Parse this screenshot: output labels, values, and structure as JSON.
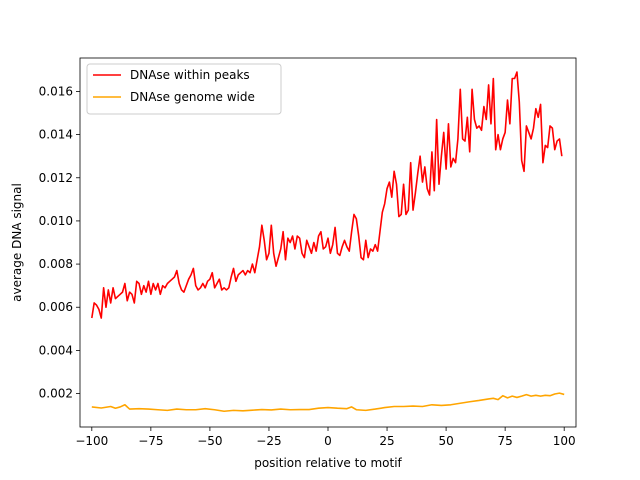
{
  "chart_data": {
    "type": "line",
    "xlabel": "position relative to motif",
    "ylabel": "average DNA signal",
    "xlim": [
      -105,
      105
    ],
    "ylim": [
      0.00045,
      0.01755
    ],
    "xticks": [
      -100,
      -75,
      -50,
      -25,
      0,
      25,
      50,
      75,
      100
    ],
    "xtick_labels": [
      "−100",
      "−75",
      "−50",
      "−25",
      "0",
      "25",
      "50",
      "75",
      "100"
    ],
    "yticks": [
      0.002,
      0.004,
      0.006,
      0.008,
      0.01,
      0.012,
      0.014,
      0.016
    ],
    "ytick_labels": [
      "0.002",
      "0.004",
      "0.006",
      "0.008",
      "0.010",
      "0.012",
      "0.014",
      "0.016"
    ],
    "legend_position": "top-left",
    "grid": false,
    "series": [
      {
        "name": "DNAse within peaks",
        "color": "#ff0000",
        "points": [
          [
            -100,
            0.0055
          ],
          [
            -99,
            0.0062
          ],
          [
            -98,
            0.0061
          ],
          [
            -97,
            0.0059
          ],
          [
            -96,
            0.0055
          ],
          [
            -95,
            0.0069
          ],
          [
            -94,
            0.006
          ],
          [
            -93,
            0.0068
          ],
          [
            -92,
            0.0062
          ],
          [
            -91,
            0.0069
          ],
          [
            -90,
            0.0064
          ],
          [
            -89,
            0.0065
          ],
          [
            -88,
            0.0066
          ],
          [
            -87,
            0.0067
          ],
          [
            -86,
            0.0071
          ],
          [
            -85,
            0.0063
          ],
          [
            -84,
            0.0067
          ],
          [
            -83,
            0.0066
          ],
          [
            -82,
            0.0062
          ],
          [
            -81,
            0.0072
          ],
          [
            -80,
            0.0071
          ],
          [
            -79,
            0.0066
          ],
          [
            -78,
            0.007
          ],
          [
            -77,
            0.0067
          ],
          [
            -76,
            0.0072
          ],
          [
            -75,
            0.0066
          ],
          [
            -74,
            0.0071
          ],
          [
            -73,
            0.0068
          ],
          [
            -72,
            0.0071
          ],
          [
            -71,
            0.0066
          ],
          [
            -70,
            0.007
          ],
          [
            -69,
            0.0069
          ],
          [
            -68,
            0.0071
          ],
          [
            -67,
            0.0072
          ],
          [
            -66,
            0.0073
          ],
          [
            -65,
            0.0074
          ],
          [
            -64,
            0.0077
          ],
          [
            -63,
            0.0071
          ],
          [
            -62,
            0.0068
          ],
          [
            -61,
            0.0067
          ],
          [
            -60,
            0.007
          ],
          [
            -59,
            0.0073
          ],
          [
            -58,
            0.0075
          ],
          [
            -57,
            0.0078
          ],
          [
            -56,
            0.007
          ],
          [
            -55,
            0.0068
          ],
          [
            -54,
            0.0069
          ],
          [
            -53,
            0.0071
          ],
          [
            -52,
            0.0069
          ],
          [
            -51,
            0.0072
          ],
          [
            -50,
            0.0073
          ],
          [
            -49,
            0.0076
          ],
          [
            -48,
            0.0069
          ],
          [
            -47,
            0.0071
          ],
          [
            -46,
            0.0073
          ],
          [
            -45,
            0.0068
          ],
          [
            -44,
            0.0069
          ],
          [
            -43,
            0.0068
          ],
          [
            -42,
            0.0069
          ],
          [
            -41,
            0.0074
          ],
          [
            -40,
            0.0078
          ],
          [
            -39,
            0.0072
          ],
          [
            -38,
            0.0075
          ],
          [
            -37,
            0.0076
          ],
          [
            -36,
            0.0077
          ],
          [
            -35,
            0.0075
          ],
          [
            -34,
            0.0077
          ],
          [
            -33,
            0.0076
          ],
          [
            -32,
            0.008
          ],
          [
            -31,
            0.0076
          ],
          [
            -30,
            0.0082
          ],
          [
            -29,
            0.0088
          ],
          [
            -28,
            0.0098
          ],
          [
            -27,
            0.0091
          ],
          [
            -26,
            0.0082
          ],
          [
            -25,
            0.0085
          ],
          [
            -24,
            0.0098
          ],
          [
            -23,
            0.0085
          ],
          [
            -22,
            0.0079
          ],
          [
            -21,
            0.0083
          ],
          [
            -20,
            0.0087
          ],
          [
            -19,
            0.0095
          ],
          [
            -18,
            0.0082
          ],
          [
            -17,
            0.0092
          ],
          [
            -16,
            0.009
          ],
          [
            -15,
            0.0093
          ],
          [
            -14,
            0.0087
          ],
          [
            -13,
            0.0093
          ],
          [
            -12,
            0.0092
          ],
          [
            -11,
            0.0085
          ],
          [
            -10,
            0.0083
          ],
          [
            -9,
            0.0091
          ],
          [
            -8,
            0.0088
          ],
          [
            -7,
            0.0085
          ],
          [
            -6,
            0.009
          ],
          [
            -5,
            0.0086
          ],
          [
            -4,
            0.0093
          ],
          [
            -3,
            0.0095
          ],
          [
            -2,
            0.0087
          ],
          [
            -1,
            0.0088
          ],
          [
            0,
            0.0092
          ],
          [
            1,
            0.0085
          ],
          [
            2,
            0.0089
          ],
          [
            3,
            0.0097
          ],
          [
            4,
            0.0085
          ],
          [
            5,
            0.0084
          ],
          [
            6,
            0.0088
          ],
          [
            7,
            0.0091
          ],
          [
            8,
            0.0088
          ],
          [
            9,
            0.0086
          ],
          [
            10,
            0.0095
          ],
          [
            11,
            0.0103
          ],
          [
            12,
            0.0101
          ],
          [
            13,
            0.0093
          ],
          [
            14,
            0.0083
          ],
          [
            15,
            0.0082
          ],
          [
            16,
            0.0091
          ],
          [
            17,
            0.0083
          ],
          [
            18,
            0.0087
          ],
          [
            19,
            0.0086
          ],
          [
            20,
            0.0089
          ],
          [
            21,
            0.0086
          ],
          [
            22,
            0.0095
          ],
          [
            23,
            0.0104
          ],
          [
            24,
            0.0108
          ],
          [
            25,
            0.0115
          ],
          [
            26,
            0.0118
          ],
          [
            27,
            0.0111
          ],
          [
            28,
            0.0123
          ],
          [
            29,
            0.0117
          ],
          [
            30,
            0.0102
          ],
          [
            31,
            0.0103
          ],
          [
            32,
            0.0117
          ],
          [
            33,
            0.0103
          ],
          [
            34,
            0.0105
          ],
          [
            35,
            0.0127
          ],
          [
            36,
            0.0105
          ],
          [
            37,
            0.0113
          ],
          [
            38,
            0.0122
          ],
          [
            39,
            0.013
          ],
          [
            40,
            0.0118
          ],
          [
            41,
            0.0125
          ],
          [
            42,
            0.0115
          ],
          [
            43,
            0.0112
          ],
          [
            44,
            0.0132
          ],
          [
            45,
            0.0114
          ],
          [
            46,
            0.0147
          ],
          [
            47,
            0.0117
          ],
          [
            48,
            0.013
          ],
          [
            49,
            0.0141
          ],
          [
            50,
            0.0124
          ],
          [
            51,
            0.0145
          ],
          [
            52,
            0.0125
          ],
          [
            53,
            0.0129
          ],
          [
            54,
            0.0127
          ],
          [
            55,
            0.0138
          ],
          [
            56,
            0.0161
          ],
          [
            57,
            0.0138
          ],
          [
            58,
            0.0137
          ],
          [
            59,
            0.0148
          ],
          [
            60,
            0.0132
          ],
          [
            61,
            0.0161
          ],
          [
            62,
            0.0147
          ],
          [
            63,
            0.0143
          ],
          [
            64,
            0.0144
          ],
          [
            65,
            0.0142
          ],
          [
            66,
            0.0153
          ],
          [
            67,
            0.0147
          ],
          [
            68,
            0.0163
          ],
          [
            69,
            0.0145
          ],
          [
            70,
            0.0166
          ],
          [
            71,
            0.0133
          ],
          [
            72,
            0.014
          ],
          [
            73,
            0.0133
          ],
          [
            74,
            0.0138
          ],
          [
            75,
            0.0141
          ],
          [
            76,
            0.0156
          ],
          [
            77,
            0.0145
          ],
          [
            78,
            0.0166
          ],
          [
            79,
            0.0166
          ],
          [
            80,
            0.0169
          ],
          [
            81,
            0.0155
          ],
          [
            82,
            0.0128
          ],
          [
            83,
            0.0123
          ],
          [
            84,
            0.0144
          ],
          [
            85,
            0.0141
          ],
          [
            86,
            0.0138
          ],
          [
            87,
            0.0143
          ],
          [
            88,
            0.0152
          ],
          [
            89,
            0.0148
          ],
          [
            90,
            0.0154
          ],
          [
            91,
            0.0127
          ],
          [
            92,
            0.0135
          ],
          [
            93,
            0.0134
          ],
          [
            94,
            0.0144
          ],
          [
            95,
            0.0143
          ],
          [
            96,
            0.0133
          ],
          [
            97,
            0.0137
          ],
          [
            98,
            0.0138
          ],
          [
            99,
            0.013
          ]
        ]
      },
      {
        "name": "DNAse genome wide",
        "color": "#ffa500",
        "points": [
          [
            -100,
            0.00138
          ],
          [
            -96,
            0.00133
          ],
          [
            -92,
            0.0014
          ],
          [
            -90,
            0.00132
          ],
          [
            -88,
            0.00138
          ],
          [
            -86,
            0.00148
          ],
          [
            -84,
            0.00128
          ],
          [
            -80,
            0.0013
          ],
          [
            -76,
            0.00128
          ],
          [
            -72,
            0.00125
          ],
          [
            -68,
            0.00122
          ],
          [
            -64,
            0.00128
          ],
          [
            -60,
            0.00125
          ],
          [
            -56,
            0.00125
          ],
          [
            -52,
            0.0013
          ],
          [
            -48,
            0.00125
          ],
          [
            -44,
            0.00118
          ],
          [
            -40,
            0.00122
          ],
          [
            -36,
            0.0012
          ],
          [
            -32,
            0.00123
          ],
          [
            -28,
            0.00126
          ],
          [
            -24,
            0.00124
          ],
          [
            -20,
            0.00128
          ],
          [
            -16,
            0.00125
          ],
          [
            -12,
            0.00126
          ],
          [
            -8,
            0.00126
          ],
          [
            -4,
            0.00132
          ],
          [
            0,
            0.00135
          ],
          [
            4,
            0.00132
          ],
          [
            8,
            0.0013
          ],
          [
            10,
            0.00138
          ],
          [
            12,
            0.00125
          ],
          [
            16,
            0.00122
          ],
          [
            20,
            0.00128
          ],
          [
            24,
            0.00135
          ],
          [
            28,
            0.0014
          ],
          [
            32,
            0.0014
          ],
          [
            36,
            0.00142
          ],
          [
            40,
            0.0014
          ],
          [
            44,
            0.00148
          ],
          [
            48,
            0.00145
          ],
          [
            52,
            0.00148
          ],
          [
            56,
            0.00155
          ],
          [
            60,
            0.00162
          ],
          [
            64,
            0.00168
          ],
          [
            68,
            0.00175
          ],
          [
            70,
            0.00178
          ],
          [
            72,
            0.00172
          ],
          [
            74,
            0.0019
          ],
          [
            76,
            0.0018
          ],
          [
            78,
            0.00188
          ],
          [
            80,
            0.00182
          ],
          [
            82,
            0.00188
          ],
          [
            84,
            0.00195
          ],
          [
            86,
            0.00188
          ],
          [
            88,
            0.00192
          ],
          [
            90,
            0.00188
          ],
          [
            92,
            0.00192
          ],
          [
            94,
            0.0019
          ],
          [
            96,
            0.00198
          ],
          [
            98,
            0.00202
          ],
          [
            100,
            0.00196
          ]
        ]
      }
    ]
  }
}
